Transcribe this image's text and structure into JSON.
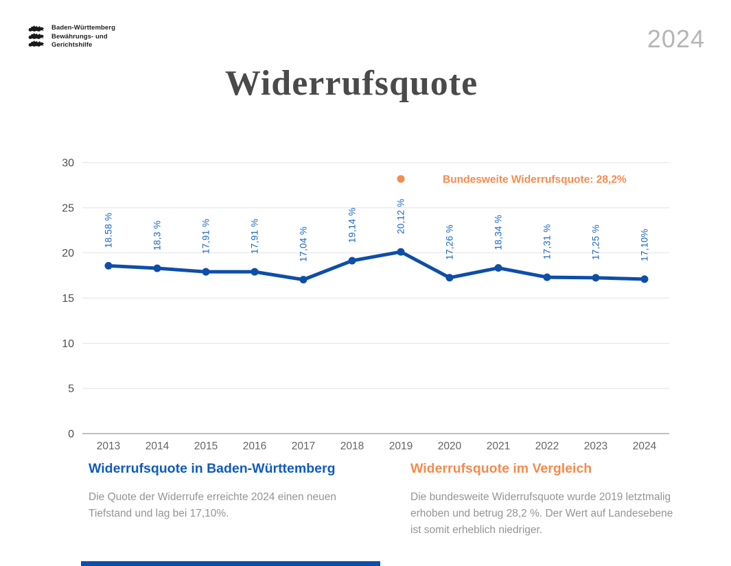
{
  "header": {
    "logo": {
      "icon": "bw-three-lions-crest",
      "lines": [
        "Baden-Württemberg",
        "Bewährungs- und",
        "Gerichtshilfe"
      ]
    },
    "year_badge": "2024",
    "title": "Widerrufsquote"
  },
  "chart_data": {
    "type": "line",
    "title": "Widerrufsquote",
    "categories": [
      "2013",
      "2014",
      "2015",
      "2016",
      "2017",
      "2018",
      "2019",
      "2020",
      "2021",
      "2022",
      "2023",
      "2024"
    ],
    "series": [
      {
        "name": "Widerrufsquote in Baden-Württemberg",
        "values": [
          18.58,
          18.3,
          17.91,
          17.91,
          17.04,
          19.14,
          20.12,
          17.26,
          18.34,
          17.31,
          17.25,
          17.1
        ],
        "point_labels": [
          "18.58 %",
          "18,3 %",
          "17,91 %",
          "17,91 %",
          "17,04 %",
          "19,14 %",
          "20,12 %",
          "17,26 %",
          "18,34 %",
          "17,31 %",
          "17,25 %",
          "17,10%"
        ],
        "color": "#0D4EA8",
        "label_color": "#1A64C6"
      }
    ],
    "annotation_point": {
      "category": "2019",
      "value": 28.2,
      "label": "Bundesweite Widerrufsquote: 28,2%",
      "color": "#F68B4D"
    },
    "xlabel": "",
    "ylabel": "",
    "ylim": [
      0,
      30
    ],
    "yticks": [
      0,
      5,
      10,
      15,
      20,
      25,
      30
    ],
    "grid": true,
    "legend_position": "inside-top-right"
  },
  "footer": {
    "left": {
      "heading": "Widerrufsquote in Baden-Württemberg",
      "heading_color": "#0F5BBF",
      "body": "Die Quote der Widerrufe erreichte 2024 einen neuen Tiefstand und lag bei 17,10%."
    },
    "right": {
      "heading": "Widerrufsquote im Vergleich",
      "heading_color": "#F68B4D",
      "body": "Die bundesweite Widerrufsquote wurde 2019 letztmalig erhoben und betrug 28,2 %. Der Wert auf Landesebene ist somit erheblich niedriger."
    }
  },
  "colors": {
    "accent_blue": "#0D4EA8",
    "accent_orange": "#F68B4D",
    "grid_line": "#E2E2E2",
    "axis_line": "#ABABAB",
    "axis_text": "#4F4F4F",
    "year_text": "#646464",
    "body_text": "#949494",
    "title_text": "#4A4A4A",
    "year_badge_text": "#B5B5B5"
  }
}
